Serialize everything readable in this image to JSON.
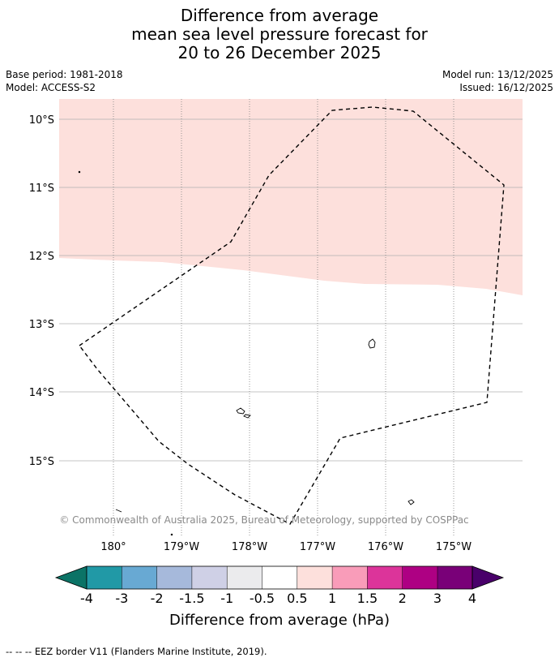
{
  "title": {
    "line1": "Difference from average",
    "line2": "mean sea level pressure forecast for",
    "line3": "20 to 26 December 2025"
  },
  "meta": {
    "base_period": "Base period: 1981-2018",
    "model": "Model: ACCESS-S2",
    "model_run": "Model run: 13/12/2025",
    "issued": "Issued: 16/12/2025"
  },
  "map": {
    "lat_labels": [
      "10°S",
      "11°S",
      "12°S",
      "13°S",
      "14°S",
      "15°S"
    ],
    "lon_labels": [
      "180°",
      "179°W",
      "178°W",
      "177°W",
      "176°W",
      "175°W"
    ],
    "shaded_class": "0.5 to 1",
    "shade_color": "#fde0dc",
    "copyright": "© Commonwealth of Australia 2025, Bureau of Meteorology, supported by COSPPac"
  },
  "colorbar": {
    "labels": [
      "-4",
      "-3",
      "-2",
      "-1.5",
      "-1",
      "-0.5",
      "0.5",
      "1",
      "1.5",
      "2",
      "3",
      "4"
    ],
    "colors": [
      "#0b7366",
      "#2199a6",
      "#68a9d3",
      "#a6b9db",
      "#cfd0e6",
      "#ebebed",
      "#ffffff",
      "#fde0dc",
      "#f99cb9",
      "#dc349a",
      "#ae0083",
      "#790078",
      "#49006a"
    ],
    "title": "Difference from average (hPa)"
  },
  "footer": {
    "text": "--  --  -- EEZ border V11 (Flanders Marine Institute, 2019)."
  }
}
